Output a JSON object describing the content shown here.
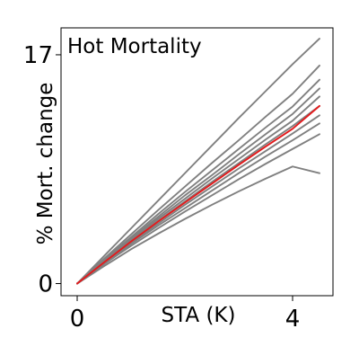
{
  "chart_data": {
    "type": "line",
    "title": "Hot Mortality",
    "xlabel": "STA (K)",
    "ylabel": "% Mort. change",
    "xlim": [
      -0.3,
      4.75
    ],
    "ylim": [
      -0.9,
      19
    ],
    "xticks": [
      0,
      4
    ],
    "yticks": [
      0,
      17
    ],
    "grid": false,
    "series_color": "#808080",
    "highlight_color": "#e41a1c",
    "x": [
      0,
      0.5,
      1,
      1.5,
      2,
      2.5,
      3,
      3.5,
      4,
      4.5
    ],
    "series": [
      {
        "values": [
          0,
          2.05,
          4.1,
          6.15,
          8.2,
          10.25,
          12.3,
          14.3,
          16.3,
          18.2
        ]
      },
      {
        "values": [
          0,
          1.85,
          3.65,
          5.45,
          7.2,
          8.95,
          10.65,
          12.4,
          14.1,
          16.2
        ]
      },
      {
        "values": [
          0,
          1.75,
          3.45,
          5.15,
          6.8,
          8.4,
          10.0,
          11.6,
          13.15,
          15.15
        ]
      },
      {
        "values": [
          0,
          1.7,
          3.35,
          4.95,
          6.55,
          8.05,
          9.6,
          11.1,
          12.6,
          14.5
        ]
      },
      {
        "values": [
          0,
          1.65,
          3.25,
          4.8,
          6.3,
          7.8,
          9.25,
          10.7,
          12.1,
          13.9
        ]
      },
      {
        "values": [
          0,
          1.6,
          3.15,
          4.65,
          6.1,
          7.55,
          8.95,
          10.35,
          11.7,
          13.2
        ]
      },
      {
        "values": [
          0,
          1.55,
          3.05,
          4.45,
          5.85,
          7.2,
          8.55,
          9.85,
          11.15,
          12.5
        ]
      },
      {
        "values": [
          0,
          1.5,
          2.95,
          4.3,
          5.6,
          6.9,
          8.2,
          9.45,
          10.65,
          11.9
        ]
      },
      {
        "values": [
          0,
          1.45,
          2.8,
          4.1,
          5.35,
          6.55,
          7.75,
          8.9,
          10.0,
          11.1
        ]
      },
      {
        "values": [
          0,
          1.3,
          2.55,
          3.7,
          4.8,
          5.85,
          6.85,
          7.8,
          8.7,
          8.2
        ]
      }
    ],
    "highlight": {
      "values": [
        0,
        1.58,
        3.12,
        4.6,
        6.02,
        7.42,
        8.82,
        10.18,
        11.5,
        13.2
      ]
    }
  }
}
